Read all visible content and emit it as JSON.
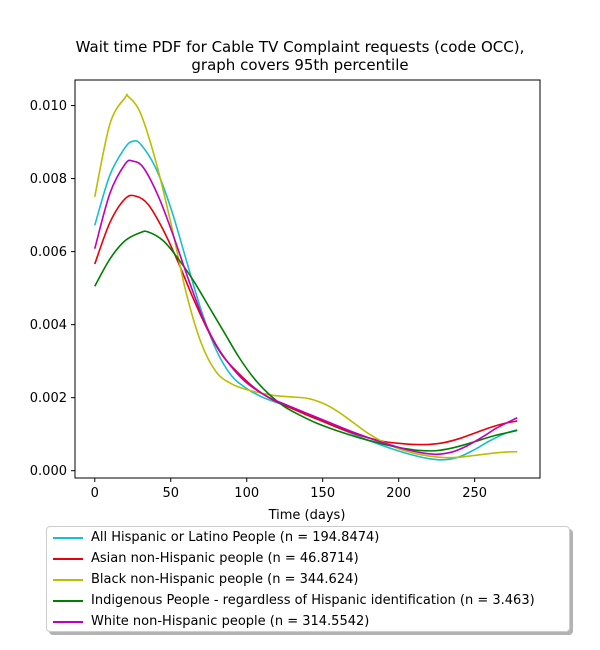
{
  "title_line1": "Wait time PDF for Cable TV Complaint  requests (code OCC),",
  "title_line2": "graph covers 95th percentile",
  "chart_data": {
    "type": "line",
    "title": "Wait time PDF for Cable TV Complaint  requests (code OCC), graph covers 95th percentile",
    "xlabel": "Time (days)",
    "ylabel": "",
    "xlim": [
      -13,
      293
    ],
    "ylim": [
      -0.0002,
      0.0107
    ],
    "x_ticks": [
      0,
      50,
      100,
      150,
      200,
      250
    ],
    "y_ticks": [
      0.0,
      0.002,
      0.004,
      0.006,
      0.008,
      0.01
    ],
    "x_tick_labels": [
      "0",
      "50",
      "100",
      "150",
      "200",
      "250"
    ],
    "y_tick_labels": [
      "0.000",
      "0.002",
      "0.004",
      "0.006",
      "0.008",
      "0.010"
    ],
    "grid": false,
    "legend_position": "below plot",
    "series": [
      {
        "name": "All Hispanic or Latino People (n = 194.8474)",
        "color": "#17becf",
        "points": [
          [
            0,
            0.00672
          ],
          [
            10,
            0.0081
          ],
          [
            20,
            0.00885
          ],
          [
            25,
            0.00902
          ],
          [
            30,
            0.00895
          ],
          [
            40,
            0.0083
          ],
          [
            50,
            0.0072
          ],
          [
            60,
            0.0058
          ],
          [
            70,
            0.0044
          ],
          [
            80,
            0.0033
          ],
          [
            90,
            0.0026
          ],
          [
            100,
            0.00225
          ],
          [
            110,
            0.00202
          ],
          [
            120,
            0.00186
          ],
          [
            130,
            0.00172
          ],
          [
            140,
            0.00155
          ],
          [
            150,
            0.00137
          ],
          [
            160,
            0.00118
          ],
          [
            170,
            0.001
          ],
          [
            180,
            0.00083
          ],
          [
            190,
            0.00068
          ],
          [
            200,
            0.00054
          ],
          [
            210,
            0.00042
          ],
          [
            220,
            0.00033
          ],
          [
            230,
            0.0003
          ],
          [
            240,
            0.00038
          ],
          [
            250,
            0.00058
          ],
          [
            260,
            0.00082
          ],
          [
            270,
            0.00102
          ],
          [
            278,
            0.00112
          ]
        ]
      },
      {
        "name": "Asian non-Hispanic people (n = 46.8714)",
        "color": "#e8000b",
        "points": [
          [
            0,
            0.00566
          ],
          [
            10,
            0.0068
          ],
          [
            20,
            0.00745
          ],
          [
            27,
            0.00752
          ],
          [
            35,
            0.0073
          ],
          [
            45,
            0.0066
          ],
          [
            55,
            0.0057
          ],
          [
            65,
            0.0047
          ],
          [
            75,
            0.0038
          ],
          [
            85,
            0.0031
          ],
          [
            100,
            0.00245
          ],
          [
            110,
            0.00212
          ],
          [
            120,
            0.00188
          ],
          [
            130,
            0.0017
          ],
          [
            140,
            0.00152
          ],
          [
            150,
            0.00135
          ],
          [
            160,
            0.00118
          ],
          [
            170,
            0.00103
          ],
          [
            180,
            0.0009
          ],
          [
            190,
            0.0008
          ],
          [
            200,
            0.00075
          ],
          [
            210,
            0.00072
          ],
          [
            220,
            0.00072
          ],
          [
            230,
            0.00077
          ],
          [
            240,
            0.00088
          ],
          [
            250,
            0.00103
          ],
          [
            260,
            0.00118
          ],
          [
            270,
            0.0013
          ],
          [
            278,
            0.00136
          ]
        ]
      },
      {
        "name": "Black non-Hispanic people (n = 344.624)",
        "color": "#bcbd00",
        "points": [
          [
            0,
            0.0075
          ],
          [
            10,
            0.0095
          ],
          [
            20,
            0.01022
          ],
          [
            22,
            0.01025
          ],
          [
            30,
            0.0098
          ],
          [
            40,
            0.0085
          ],
          [
            50,
            0.0068
          ],
          [
            60,
            0.0049
          ],
          [
            70,
            0.0035
          ],
          [
            80,
            0.0027
          ],
          [
            90,
            0.00238
          ],
          [
            100,
            0.00222
          ],
          [
            110,
            0.00212
          ],
          [
            120,
            0.00205
          ],
          [
            130,
            0.00202
          ],
          [
            140,
            0.00198
          ],
          [
            150,
            0.00185
          ],
          [
            160,
            0.00162
          ],
          [
            170,
            0.00132
          ],
          [
            180,
            0.00102
          ],
          [
            190,
            0.00078
          ],
          [
            200,
            0.0006
          ],
          [
            210,
            0.00048
          ],
          [
            220,
            0.0004
          ],
          [
            230,
            0.00036
          ],
          [
            240,
            0.00037
          ],
          [
            250,
            0.00042
          ],
          [
            260,
            0.00047
          ],
          [
            270,
            0.00051
          ],
          [
            278,
            0.00052
          ]
        ]
      },
      {
        "name": "Indigenous People - regardless of Hispanic identification (n = 3.463)",
        "color": "#008000",
        "points": [
          [
            0,
            0.00505
          ],
          [
            10,
            0.0058
          ],
          [
            20,
            0.0063
          ],
          [
            30,
            0.00652
          ],
          [
            35,
            0.00654
          ],
          [
            45,
            0.0063
          ],
          [
            55,
            0.0058
          ],
          [
            65,
            0.0052
          ],
          [
            75,
            0.0045
          ],
          [
            85,
            0.0038
          ],
          [
            95,
            0.0031
          ],
          [
            105,
            0.00252
          ],
          [
            115,
            0.00208
          ],
          [
            125,
            0.00175
          ],
          [
            135,
            0.00152
          ],
          [
            145,
            0.00132
          ],
          [
            155,
            0.00116
          ],
          [
            165,
            0.00102
          ],
          [
            175,
            0.00089
          ],
          [
            185,
            0.00078
          ],
          [
            195,
            0.00068
          ],
          [
            205,
            0.0006
          ],
          [
            215,
            0.00055
          ],
          [
            225,
            0.00055
          ],
          [
            235,
            0.00062
          ],
          [
            245,
            0.00073
          ],
          [
            255,
            0.00086
          ],
          [
            265,
            0.00098
          ],
          [
            278,
            0.0011
          ]
        ]
      },
      {
        "name": "White non-Hispanic people (n = 314.5542)",
        "color": "#bf00bf",
        "points": [
          [
            0,
            0.00608
          ],
          [
            10,
            0.0076
          ],
          [
            20,
            0.0084
          ],
          [
            25,
            0.00848
          ],
          [
            32,
            0.0083
          ],
          [
            42,
            0.0075
          ],
          [
            52,
            0.0064
          ],
          [
            62,
            0.0052
          ],
          [
            72,
            0.0041
          ],
          [
            82,
            0.0033
          ],
          [
            95,
            0.0026
          ],
          [
            105,
            0.00225
          ],
          [
            115,
            0.002
          ],
          [
            125,
            0.00182
          ],
          [
            135,
            0.00165
          ],
          [
            145,
            0.00148
          ],
          [
            155,
            0.00131
          ],
          [
            165,
            0.00114
          ],
          [
            175,
            0.00098
          ],
          [
            185,
            0.00083
          ],
          [
            195,
            0.0007
          ],
          [
            205,
            0.00058
          ],
          [
            215,
            0.00049
          ],
          [
            225,
            0.00045
          ],
          [
            235,
            0.00051
          ],
          [
            245,
            0.00068
          ],
          [
            255,
            0.00092
          ],
          [
            265,
            0.00118
          ],
          [
            278,
            0.00145
          ]
        ]
      }
    ]
  }
}
